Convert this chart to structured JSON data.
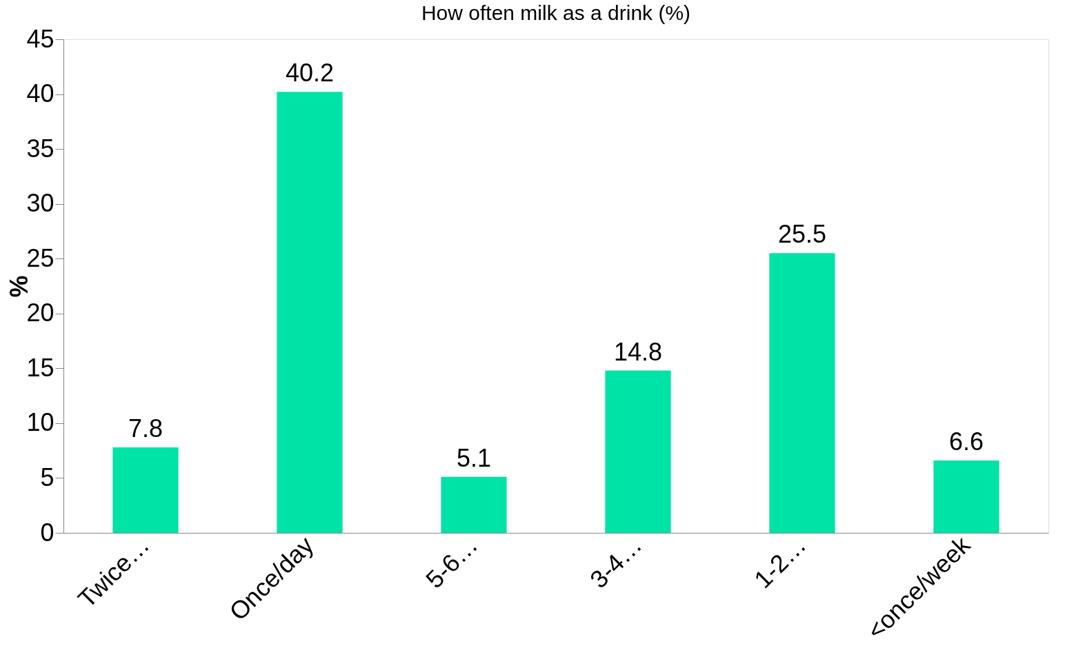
{
  "chart_data": {
    "type": "bar",
    "title": "How often milk as a drink (%)",
    "ylabel": "%",
    "categories": [
      "Twice…",
      "Once/day",
      "5-6…",
      "3-4…",
      "1-2…",
      "<once/week"
    ],
    "values": [
      7.8,
      40.2,
      5.1,
      14.8,
      25.5,
      6.6
    ],
    "color": "#00e3a6",
    "ylim": [
      0,
      45
    ],
    "yticks": [
      0,
      5,
      10,
      15,
      20,
      25,
      30,
      35,
      40,
      45
    ],
    "grid": false,
    "data_labels": true
  }
}
